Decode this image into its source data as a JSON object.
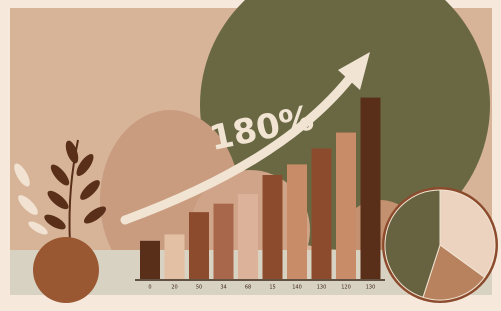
{
  "chart_data": [
    {
      "type": "bar",
      "annotation": "180%",
      "categories": [
        "0",
        "20",
        "50",
        "34",
        "68",
        "15",
        "140",
        "130",
        "120",
        "130"
      ],
      "values": [
        36,
        42,
        63,
        71,
        80,
        98,
        108,
        123,
        138,
        171
      ],
      "colors": [
        "#5a2f1a",
        "#e3bfa4",
        "#8c4b2c",
        "#a8674a",
        "#dcb39a",
        "#8c4b2c",
        "#c98c68",
        "#8c4b2c",
        "#c98c68",
        "#5a2f1a"
      ],
      "ylim": [
        0,
        180
      ]
    },
    {
      "type": "pie",
      "values": [
        35,
        20,
        45
      ],
      "colors": [
        "#ecd3bf",
        "#b8825f",
        "#67623f"
      ]
    }
  ]
}
